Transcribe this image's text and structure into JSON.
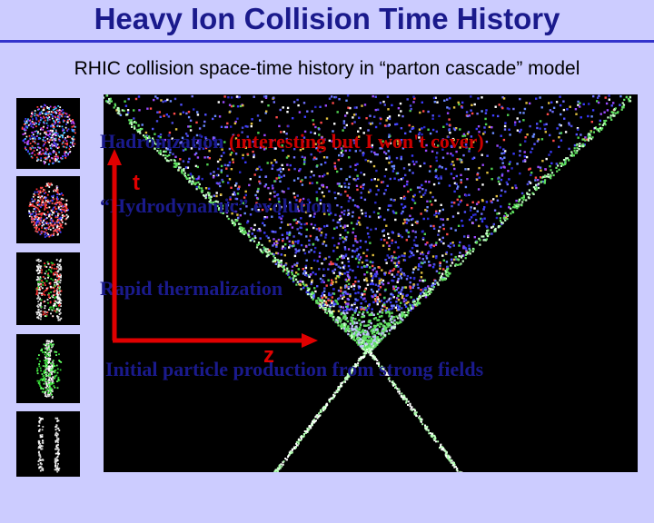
{
  "slide": {
    "title": "Heavy Ion Collision Time History",
    "subtitle": "RHIC collision space-time history in “parton cascade” model"
  },
  "stages": {
    "hadronization": "Hadronization",
    "hadronization_aside": " (interesting but I won't cover)",
    "hydro": "“Hydrodynamic” evolution",
    "thermalization": "Rapid thermalization",
    "initial": "Initial particle production from strong fields"
  },
  "axes": {
    "time_label": "t",
    "z_label": "z"
  },
  "colors": {
    "background": "#ccccff",
    "title": "#1a1a8c",
    "axis": "#e00000",
    "aside": "#cc0000"
  },
  "icons": {
    "thumbnails": [
      "collision-stage-5-icon",
      "collision-stage-4-icon",
      "collision-stage-3-icon",
      "collision-stage-2-icon",
      "collision-stage-1-icon"
    ]
  }
}
